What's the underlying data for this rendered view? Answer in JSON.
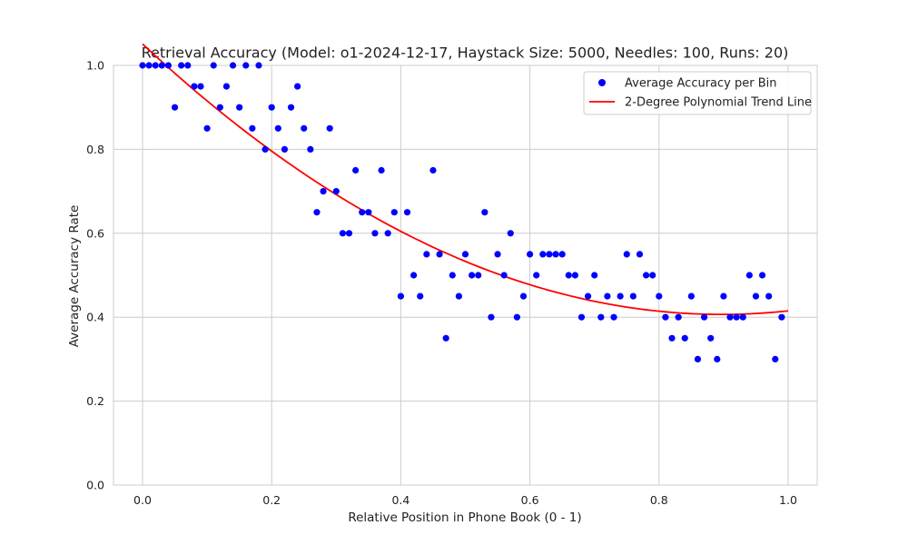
{
  "chart_data": {
    "type": "scatter",
    "title": "Retrieval Accuracy (Model: o1-2024-12-17, Haystack Size: 5000, Needles: 100, Runs: 20)",
    "xlabel": "Relative Position in Phone Book (0 - 1)",
    "ylabel": "Average Accuracy Rate",
    "xlim": [
      -0.045,
      1.045
    ],
    "ylim": [
      0.0,
      1.0
    ],
    "xticks": [
      0.0,
      0.2,
      0.4,
      0.6,
      0.8,
      1.0
    ],
    "yticks": [
      0.0,
      0.2,
      0.4,
      0.6,
      0.8,
      1.0
    ],
    "x_tick_labels": [
      "0.0",
      "0.2",
      "0.4",
      "0.6",
      "0.8",
      "1.0"
    ],
    "y_tick_labels": [
      "0.0",
      "0.2",
      "0.4",
      "0.6",
      "0.8",
      "1.0"
    ],
    "grid": true,
    "legend_position": "top-right",
    "series": [
      {
        "name": "Average Accuracy per Bin",
        "kind": "scatter",
        "color": "#0000ff",
        "x": [
          0.0,
          0.01,
          0.02,
          0.03,
          0.04,
          0.05,
          0.06,
          0.07,
          0.08,
          0.09,
          0.1,
          0.11,
          0.12,
          0.13,
          0.14,
          0.15,
          0.16,
          0.17,
          0.18,
          0.19,
          0.2,
          0.21,
          0.22,
          0.23,
          0.24,
          0.25,
          0.26,
          0.27,
          0.28,
          0.29,
          0.3,
          0.31,
          0.32,
          0.33,
          0.34,
          0.35,
          0.36,
          0.37,
          0.38,
          0.39,
          0.4,
          0.41,
          0.42,
          0.43,
          0.44,
          0.45,
          0.46,
          0.47,
          0.48,
          0.49,
          0.5,
          0.51,
          0.52,
          0.53,
          0.54,
          0.55,
          0.56,
          0.57,
          0.58,
          0.59,
          0.6,
          0.61,
          0.62,
          0.63,
          0.64,
          0.65,
          0.66,
          0.67,
          0.68,
          0.69,
          0.7,
          0.71,
          0.72,
          0.73,
          0.74,
          0.75,
          0.76,
          0.77,
          0.78,
          0.79,
          0.8,
          0.81,
          0.82,
          0.83,
          0.84,
          0.85,
          0.86,
          0.87,
          0.88,
          0.89,
          0.9,
          0.91,
          0.92,
          0.93,
          0.94,
          0.95,
          0.96,
          0.97,
          0.98,
          0.99
        ],
        "y": [
          1.0,
          1.0,
          1.0,
          1.0,
          1.0,
          0.9,
          1.0,
          1.0,
          0.95,
          0.95,
          0.85,
          1.0,
          0.9,
          0.95,
          1.0,
          0.9,
          1.0,
          0.85,
          1.0,
          0.8,
          0.9,
          0.85,
          0.8,
          0.9,
          0.95,
          0.85,
          0.8,
          0.65,
          0.7,
          0.85,
          0.7,
          0.6,
          0.6,
          0.75,
          0.65,
          0.65,
          0.6,
          0.75,
          0.6,
          0.65,
          0.45,
          0.65,
          0.5,
          0.45,
          0.55,
          0.75,
          0.55,
          0.35,
          0.5,
          0.45,
          0.55,
          0.5,
          0.5,
          0.65,
          0.4,
          0.55,
          0.5,
          0.6,
          0.4,
          0.45,
          0.55,
          0.5,
          0.55,
          0.55,
          0.55,
          0.55,
          0.5,
          0.5,
          0.4,
          0.45,
          0.5,
          0.4,
          0.45,
          0.4,
          0.45,
          0.55,
          0.45,
          0.55,
          0.5,
          0.5,
          0.45,
          0.4,
          0.35,
          0.4,
          0.35,
          0.45,
          0.3,
          0.4,
          0.35,
          0.3,
          0.45,
          0.4,
          0.4,
          0.4,
          0.5,
          0.45,
          0.5,
          0.45,
          0.3,
          0.4
        ]
      },
      {
        "name": "2-Degree Polynomial Trend Line",
        "kind": "line",
        "color": "#ff0000",
        "x_range": [
          0.0,
          1.0
        ],
        "coefficients": [
          1.051,
          -1.436,
          0.8
        ]
      }
    ]
  }
}
